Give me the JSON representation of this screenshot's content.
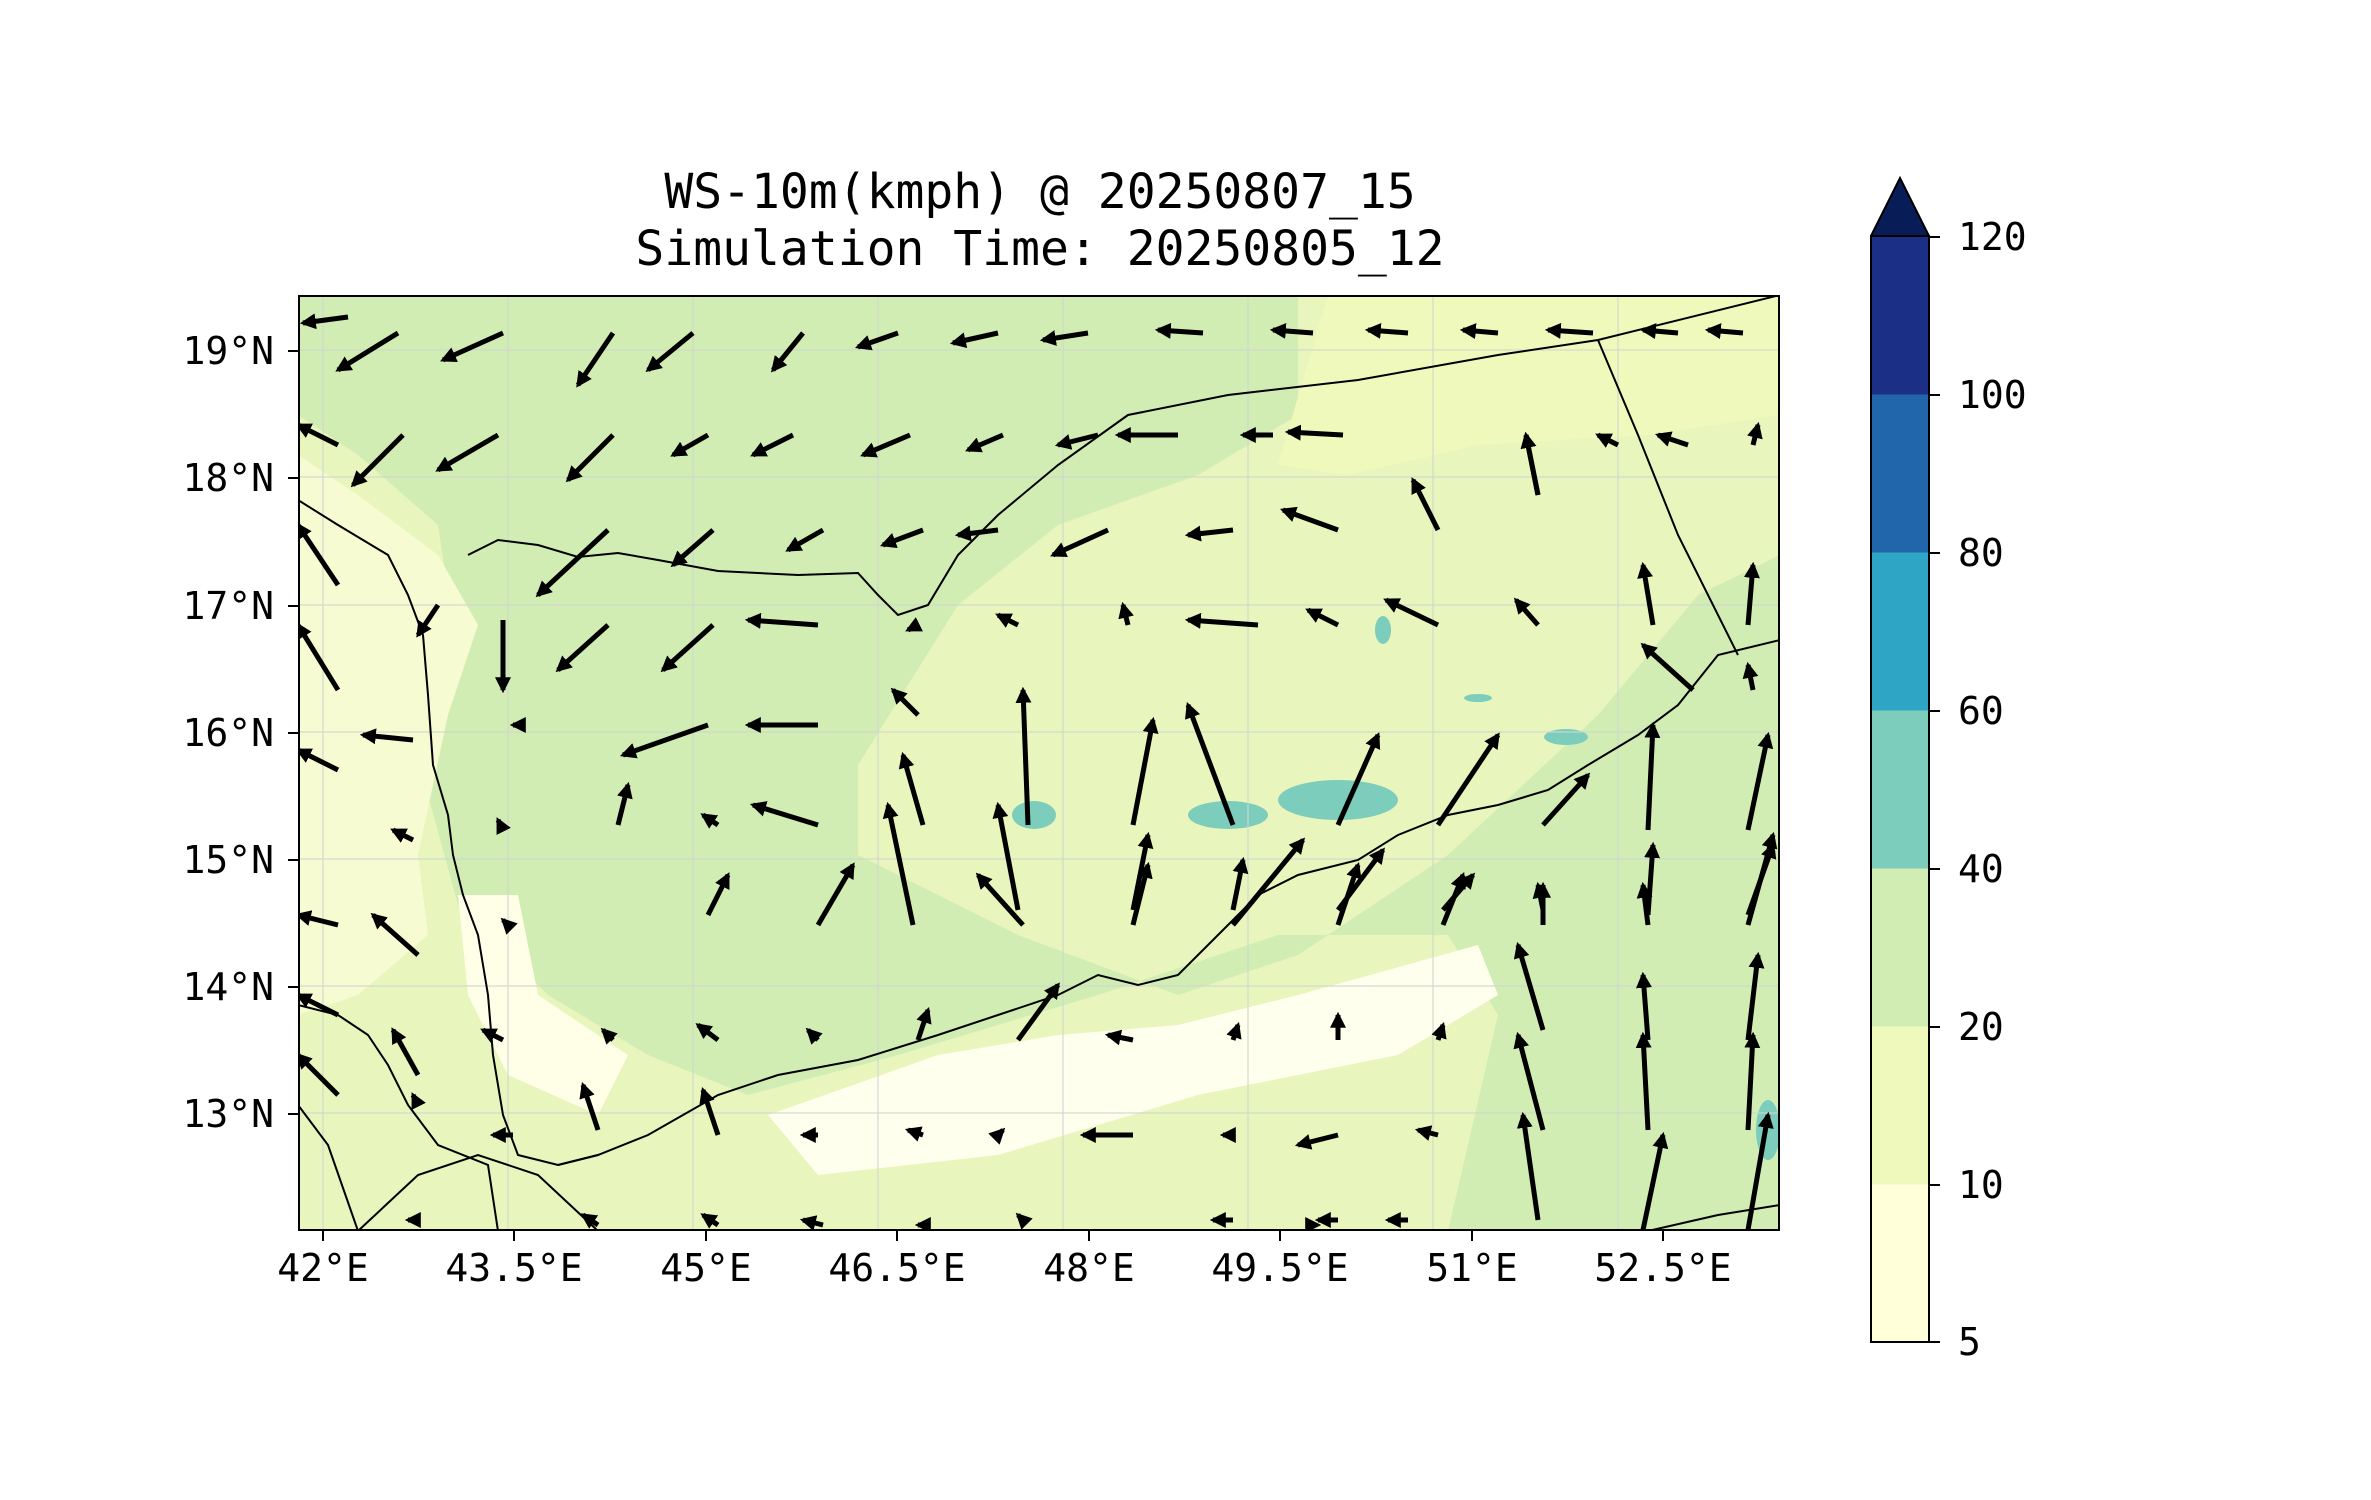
{
  "title_line1": "WS-10m(kmph) @ 20250807_15",
  "title_line2": "Simulation Time: 20250805_12",
  "x_ticks": [
    "42°E",
    "43.5°E",
    "45°E",
    "46.5°E",
    "48°E",
    "49.5°E",
    "51°E",
    "52.5°E"
  ],
  "y_ticks": [
    "19°N",
    "18°N",
    "17°N",
    "16°N",
    "15°N",
    "14°N",
    "13°N"
  ],
  "colorbar": {
    "levels": [
      "5",
      "10",
      "20",
      "40",
      "60",
      "80",
      "100",
      "120"
    ],
    "colors": [
      "#ffffd9",
      "#f0f9bc",
      "#d1edb3",
      "#7ccdbb",
      "#2fa5c5",
      "#2165ab",
      "#1c2f86",
      "#081d58"
    ],
    "extend": "max"
  },
  "map": {
    "lon_range": [
      41.9,
      53.8
    ],
    "lat_range": [
      12.1,
      19.45
    ],
    "land_color": "#f0f9bc",
    "sea_color": "#d1edb3"
  }
}
